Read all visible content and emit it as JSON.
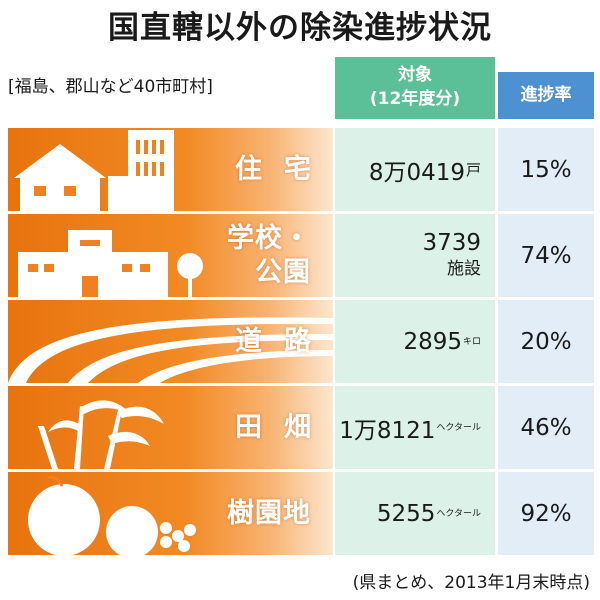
{
  "title": "国直轄以外の除染進捗状況",
  "scope": "[福島、郡山など40市町村]",
  "headers": {
    "target_line1": "対象",
    "target_line2": "(12年度分)",
    "rate": "進捗率"
  },
  "rows": [
    {
      "category": "住宅",
      "target_value": "8万0419",
      "target_unit": "戸",
      "rate": "15%"
    },
    {
      "category_line1": "学校・",
      "category_line2": "公園",
      "target_value": "3739",
      "target_unit": "施設",
      "rate": "74%"
    },
    {
      "category": "道路",
      "target_value": "2895",
      "target_unit": "キロ",
      "rate": "20%"
    },
    {
      "category": "田畑",
      "target_value": "1万8121",
      "target_unit": "ヘクタール",
      "rate": "46%"
    },
    {
      "category": "樹園地",
      "target_value": "5255",
      "target_unit": "ヘクタール",
      "rate": "92%"
    }
  ],
  "footnote": "(県まとめ、2013年1月末時点)",
  "colors": {
    "orange": "#f28a24",
    "green_header": "#5bbf97",
    "green_cell": "#dcf1e7",
    "blue_header": "#4e91d2",
    "blue_cell": "#e2edf8"
  }
}
